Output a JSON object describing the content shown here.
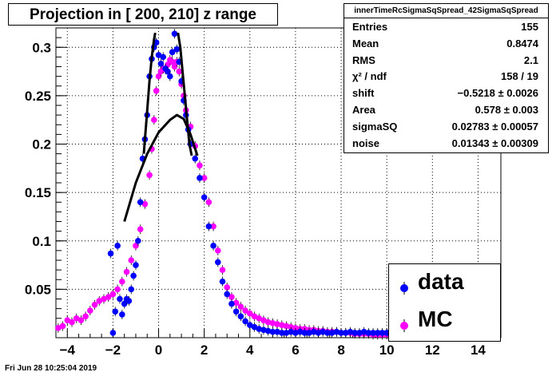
{
  "title": "Projection in [ 200, 210] z range",
  "footer": "Fri Jun 28 10:25:04 2019",
  "stats": {
    "header": "innerTimeRcSigmaSqSpread_42SigmaSqSpread",
    "rows": [
      {
        "key": "Entries",
        "value": "155"
      },
      {
        "key": "Mean",
        "value": "0.8474"
      },
      {
        "key": "RMS",
        "value": "2.1"
      },
      {
        "key": "χ² / ndf",
        "value": "158 / 19"
      },
      {
        "key": "shift",
        "value": "−0.5218 ± 0.0026"
      },
      {
        "key": "Area",
        "value": "0.578 ± 0.003"
      },
      {
        "key": "sigmaSQ",
        "value": "0.02783 ± 0.00057"
      },
      {
        "key": "noise",
        "value": "0.01343 ± 0.00309"
      }
    ]
  },
  "legend": [
    {
      "label": "data",
      "color": "#0000ff"
    },
    {
      "label": "MC",
      "color": "#ff00ff"
    }
  ],
  "chart_data": {
    "type": "scatter",
    "xlim": [
      -4.5,
      15
    ],
    "ylim": [
      0,
      0.32
    ],
    "xticks": [
      -4,
      -2,
      0,
      2,
      4,
      6,
      8,
      10,
      12,
      14
    ],
    "yticks": [
      0.05,
      0.1,
      0.15,
      0.2,
      0.25,
      0.3
    ],
    "grid": true,
    "legend_position": "bottom-right",
    "series": [
      {
        "name": "data",
        "color": "#0000ff",
        "points": [
          [
            -2.1,
            0.087
          ],
          [
            -2.0,
            0.005
          ],
          [
            -1.9,
            0.027
          ],
          [
            -1.8,
            0.095
          ],
          [
            -1.7,
            0.04
          ],
          [
            -1.6,
            0.024
          ],
          [
            -1.5,
            0.035
          ],
          [
            -1.4,
            0.04
          ],
          [
            -1.3,
            0.038
          ],
          [
            -1.2,
            0.05
          ],
          [
            -1.1,
            0.064
          ],
          [
            -1.0,
            0.075
          ],
          [
            -0.9,
            0.1
          ],
          [
            -0.8,
            0.14
          ],
          [
            -0.7,
            0.185
          ],
          [
            -0.6,
            0.205
          ],
          [
            -0.5,
            0.23
          ],
          [
            -0.4,
            0.27
          ],
          [
            -0.3,
            0.288
          ],
          [
            -0.2,
            0.3
          ],
          [
            -0.1,
            0.305
          ],
          [
            0.0,
            0.292
          ],
          [
            0.1,
            0.283
          ],
          [
            0.2,
            0.29
          ],
          [
            0.3,
            0.278
          ],
          [
            0.4,
            0.275
          ],
          [
            0.5,
            0.27
          ],
          [
            0.6,
            0.295
          ],
          [
            0.7,
            0.314
          ],
          [
            0.8,
            0.298
          ],
          [
            0.9,
            0.285
          ],
          [
            1.0,
            0.265
          ],
          [
            1.1,
            0.245
          ],
          [
            1.2,
            0.23
          ],
          [
            1.3,
            0.215
          ],
          [
            1.4,
            0.2
          ],
          [
            1.6,
            0.185
          ],
          [
            1.8,
            0.165
          ],
          [
            2.0,
            0.145
          ],
          [
            2.2,
            0.115
          ],
          [
            2.4,
            0.095
          ],
          [
            2.6,
            0.078
          ],
          [
            2.8,
            0.058
          ],
          [
            3.0,
            0.045
          ],
          [
            3.2,
            0.035
          ],
          [
            3.4,
            0.027
          ],
          [
            3.6,
            0.022
          ],
          [
            3.8,
            0.017
          ],
          [
            4.0,
            0.013
          ],
          [
            4.2,
            0.011
          ],
          [
            4.4,
            0.009
          ],
          [
            4.6,
            0.008
          ],
          [
            4.8,
            0.007
          ],
          [
            5.0,
            0.006
          ],
          [
            5.2,
            0.006
          ],
          [
            5.4,
            0.005
          ],
          [
            5.6,
            0.005
          ],
          [
            5.8,
            0.006
          ],
          [
            6.0,
            0.005
          ],
          [
            6.2,
            0.006
          ],
          [
            6.4,
            0.005
          ],
          [
            6.6,
            0.005
          ],
          [
            6.8,
            0.006
          ],
          [
            7.0,
            0.005
          ],
          [
            7.2,
            0.006
          ],
          [
            7.4,
            0.005
          ],
          [
            7.6,
            0.005
          ],
          [
            7.8,
            0.006
          ],
          [
            8.0,
            0.005
          ],
          [
            8.2,
            0.005
          ],
          [
            8.4,
            0.006
          ],
          [
            8.6,
            0.005
          ],
          [
            8.8,
            0.005
          ],
          [
            9.0,
            0.006
          ],
          [
            9.2,
            0.005
          ],
          [
            9.4,
            0.005
          ],
          [
            9.6,
            0.005
          ],
          [
            9.8,
            0.005
          ],
          [
            10.0,
            0.005
          ]
        ]
      },
      {
        "name": "MC",
        "color": "#ff00ff",
        "points": [
          [
            -4.4,
            0.01
          ],
          [
            -4.2,
            0.012
          ],
          [
            -4.0,
            0.018
          ],
          [
            -3.8,
            0.016
          ],
          [
            -3.6,
            0.02
          ],
          [
            -3.4,
            0.018
          ],
          [
            -3.2,
            0.022
          ],
          [
            -3.0,
            0.028
          ],
          [
            -2.8,
            0.034
          ],
          [
            -2.6,
            0.038
          ],
          [
            -2.4,
            0.04
          ],
          [
            -2.2,
            0.042
          ],
          [
            -2.0,
            0.045
          ],
          [
            -1.8,
            0.05
          ],
          [
            -1.6,
            0.058
          ],
          [
            -1.4,
            0.068
          ],
          [
            -1.2,
            0.08
          ],
          [
            -1.0,
            0.095
          ],
          [
            -0.8,
            0.112
          ],
          [
            -0.6,
            0.138
          ],
          [
            -0.4,
            0.168
          ],
          [
            -0.3,
            0.195
          ],
          [
            -0.2,
            0.225
          ],
          [
            -0.1,
            0.255
          ],
          [
            0.0,
            0.27
          ],
          [
            0.1,
            0.275
          ],
          [
            0.2,
            0.278
          ],
          [
            0.3,
            0.277
          ],
          [
            0.4,
            0.282
          ],
          [
            0.5,
            0.287
          ],
          [
            0.6,
            0.285
          ],
          [
            0.7,
            0.28
          ],
          [
            0.8,
            0.285
          ],
          [
            0.9,
            0.275
          ],
          [
            1.0,
            0.262
          ],
          [
            1.1,
            0.25
          ],
          [
            1.2,
            0.235
          ],
          [
            1.4,
            0.218
          ],
          [
            1.6,
            0.198
          ],
          [
            1.8,
            0.178
          ],
          [
            2.0,
            0.165
          ],
          [
            2.2,
            0.14
          ],
          [
            2.4,
            0.115
          ],
          [
            2.6,
            0.09
          ],
          [
            2.8,
            0.07
          ],
          [
            3.0,
            0.052
          ],
          [
            3.2,
            0.042
          ],
          [
            3.4,
            0.036
          ],
          [
            3.6,
            0.032
          ],
          [
            3.8,
            0.028
          ],
          [
            4.0,
            0.025
          ],
          [
            4.2,
            0.022
          ],
          [
            4.4,
            0.02
          ],
          [
            4.6,
            0.018
          ],
          [
            4.8,
            0.016
          ],
          [
            5.0,
            0.015
          ],
          [
            5.2,
            0.014
          ],
          [
            5.4,
            0.013
          ],
          [
            5.6,
            0.012
          ],
          [
            5.8,
            0.011
          ],
          [
            6.0,
            0.01
          ],
          [
            6.2,
            0.009
          ],
          [
            6.4,
            0.009
          ],
          [
            6.6,
            0.008
          ],
          [
            6.8,
            0.008
          ],
          [
            7.0,
            0.007
          ],
          [
            7.2,
            0.007
          ],
          [
            7.4,
            0.006
          ],
          [
            7.6,
            0.006
          ],
          [
            7.8,
            0.006
          ],
          [
            8.0,
            0.005
          ],
          [
            8.2,
            0.005
          ],
          [
            8.4,
            0.005
          ],
          [
            8.6,
            0.004
          ],
          [
            8.8,
            0.004
          ],
          [
            9.0,
            0.004
          ],
          [
            9.2,
            0.004
          ],
          [
            9.4,
            0.003
          ],
          [
            9.6,
            0.003
          ],
          [
            9.8,
            0.003
          ],
          [
            10.0,
            0.003
          ]
        ]
      }
    ],
    "fit_curves": [
      {
        "points": [
          [
            -1.5,
            0.12
          ],
          [
            -1.0,
            0.16
          ],
          [
            -0.5,
            0.19
          ],
          [
            0.0,
            0.212
          ],
          [
            0.5,
            0.225
          ],
          [
            0.8,
            0.23
          ],
          [
            1.1,
            0.226
          ],
          [
            1.4,
            0.21
          ],
          [
            1.7,
            0.188
          ]
        ]
      },
      {
        "points": [
          [
            -0.65,
            0.19
          ],
          [
            -0.5,
            0.235
          ],
          [
            -0.4,
            0.265
          ],
          [
            -0.3,
            0.29
          ],
          [
            -0.2,
            0.308
          ],
          [
            -0.15,
            0.315
          ]
        ]
      },
      {
        "points": [
          [
            0.85,
            0.315
          ],
          [
            0.95,
            0.3
          ],
          [
            1.05,
            0.275
          ],
          [
            1.15,
            0.25
          ],
          [
            1.25,
            0.225
          ],
          [
            1.35,
            0.2
          ],
          [
            1.45,
            0.188
          ]
        ]
      }
    ]
  }
}
